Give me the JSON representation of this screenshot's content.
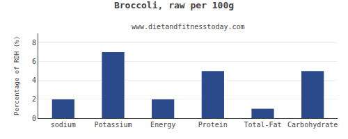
{
  "chart_data": {
    "type": "bar",
    "title": "Broccoli, raw per 100g",
    "subtitle": "www.dietandfitnesstoday.com",
    "categories": [
      "sodium",
      "Potassium",
      "Energy",
      "Protein",
      "Total-Fat",
      "Carbohydrate"
    ],
    "values": [
      2.0,
      7.0,
      2.0,
      5.0,
      1.0,
      5.0
    ],
    "color": "#2b4a8b",
    "ylabel": "Percentage of RDH (%)",
    "ylim": [
      0,
      9
    ],
    "yticks": [
      0,
      2,
      4,
      6,
      8
    ],
    "grid": true
  }
}
